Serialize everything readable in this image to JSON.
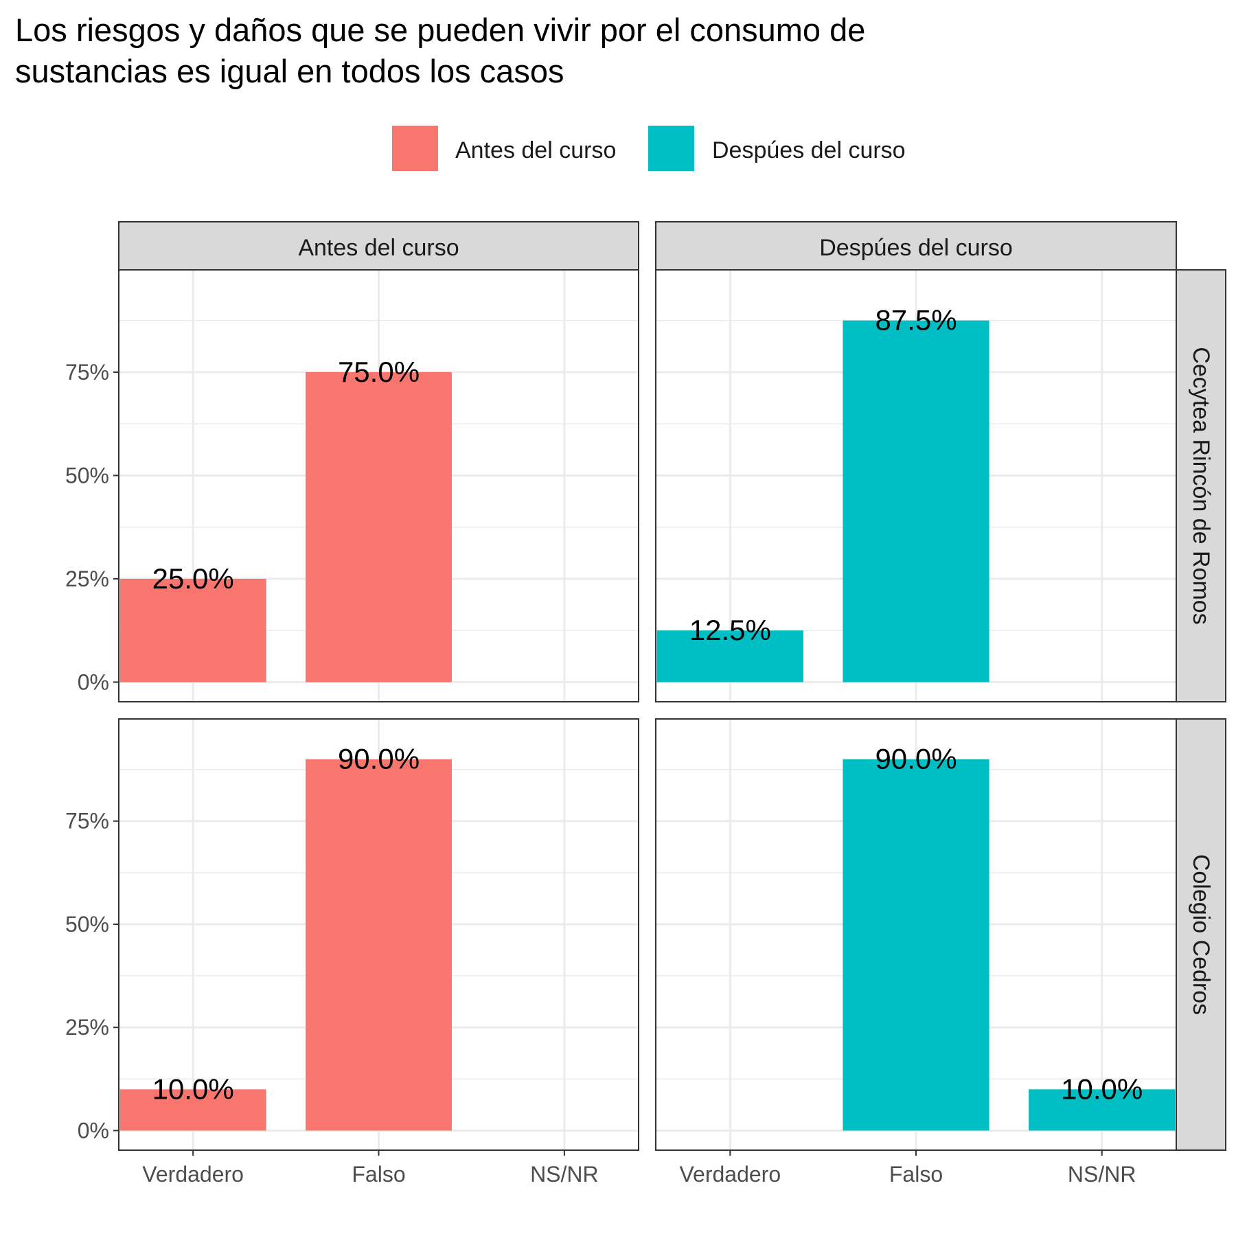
{
  "chart_data": {
    "type": "bar",
    "title": "Los riesgos y daños que se pueden vivir por el consumo de sustancias es igual en todos los casos",
    "title_lines": [
      "Los riesgos y daños que se pueden vivir por el consumo de",
      "sustancias es igual en todos los casos"
    ],
    "categories": [
      "Verdadero",
      "Falso",
      "NS/NR"
    ],
    "legend": {
      "position": "top",
      "items": [
        {
          "label": "Antes del curso",
          "color": "#F8766D"
        },
        {
          "label": "Despúes del curso",
          "color": "#00BFC4"
        }
      ]
    },
    "facet_columns": [
      {
        "label": "Antes del curso",
        "color": "#F8766D"
      },
      {
        "label": "Despúes del curso",
        "color": "#00BFC4"
      }
    ],
    "facet_rows": [
      "Cecytea Rincón de Romos",
      "Colegio Cedros"
    ],
    "y_ticks": [
      0,
      25,
      50,
      75
    ],
    "y_tick_labels": [
      "0%",
      "25%",
      "50%",
      "75%"
    ],
    "ylim": [
      0,
      95
    ],
    "grid": true,
    "panels": [
      {
        "row": 0,
        "col": 0,
        "values": [
          25,
          75,
          null
        ],
        "labels": [
          "25.0%",
          "75.0%",
          null
        ]
      },
      {
        "row": 0,
        "col": 1,
        "values": [
          12.5,
          87.5,
          null
        ],
        "labels": [
          "12.5%",
          "87.5%",
          null
        ]
      },
      {
        "row": 1,
        "col": 0,
        "values": [
          10,
          90,
          null
        ],
        "labels": [
          "10.0%",
          "90.0%",
          null
        ]
      },
      {
        "row": 1,
        "col": 1,
        "values": [
          null,
          90,
          10
        ],
        "labels": [
          null,
          "90.0%",
          "10.0%"
        ]
      }
    ]
  }
}
